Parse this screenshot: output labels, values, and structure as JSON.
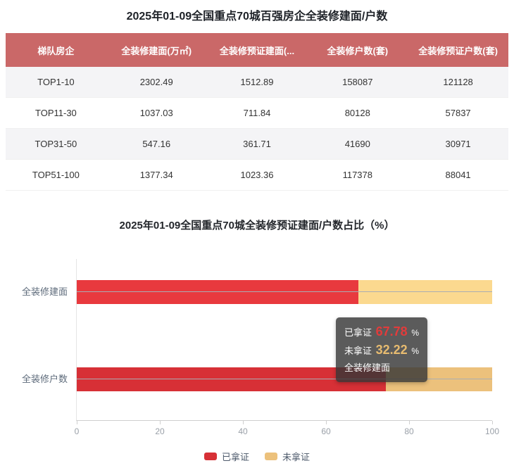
{
  "table_section": {
    "title": "2025年01-09全国重点70城百强房企全装修建面/户数",
    "header_bg": "#ca6868",
    "columns": [
      "梯队房企",
      "全装修建面(万㎡)",
      "全装修预证建面(...",
      "全装修户数(套)",
      "全装修预证户数(套)"
    ],
    "rows": [
      [
        "TOP1-10",
        "2302.49",
        "1512.89",
        "158087",
        "121128"
      ],
      [
        "TOP11-30",
        "1037.03",
        "711.84",
        "80128",
        "57837"
      ],
      [
        "TOP31-50",
        "547.16",
        "361.71",
        "41690",
        "30971"
      ],
      [
        "TOP51-100",
        "1377.34",
        "1023.36",
        "117378",
        "88041"
      ]
    ]
  },
  "chart_data": {
    "type": "bar",
    "orientation": "horizontal",
    "stacked": true,
    "title": "2025年01-09全国重点70城全装修预证建面/户数占比（%）",
    "categories": [
      "全装修建面",
      "全装修户数"
    ],
    "series": [
      {
        "name": "已拿证",
        "color": "#d73036",
        "hover_color": "#e8393e",
        "values": [
          67.78,
          74.45
        ]
      },
      {
        "name": "未拿证",
        "color": "#ecc17c",
        "hover_color": "#fbd98f",
        "values": [
          32.22,
          25.55
        ]
      }
    ],
    "hovered_category_index": 0,
    "xlim": [
      0,
      100
    ],
    "x_ticks": [
      "0",
      "20",
      "40",
      "60",
      "80",
      "100"
    ],
    "grid": true,
    "legend_position": "bottom"
  },
  "tooltip": {
    "rows": [
      {
        "label": "已拿证",
        "value": "67.78",
        "unit": "%",
        "color": "#e23b3b"
      },
      {
        "label": "未拿证",
        "value": "32.22",
        "unit": "%",
        "color": "#e7bb70"
      }
    ],
    "category": "全装修建面"
  }
}
